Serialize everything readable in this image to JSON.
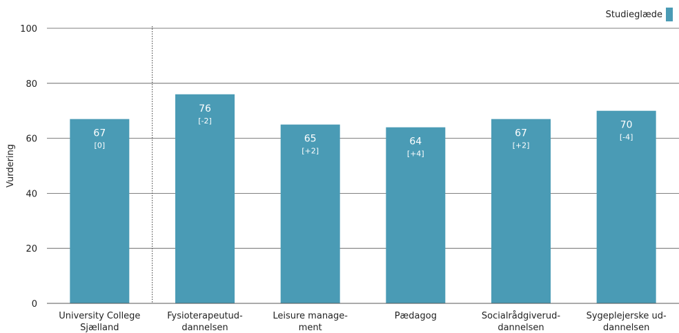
{
  "chart_data": {
    "type": "bar",
    "ylabel": "Vurdering",
    "xlabel": "",
    "ylim": [
      0,
      100
    ],
    "yticks": [
      0,
      20,
      40,
      60,
      80,
      100
    ],
    "grid": true,
    "legend_position": "top-right",
    "bar_color": "#4a9bb5",
    "categories": [
      [
        "University College",
        "Sjælland"
      ],
      [
        "Fysioterapeutud-",
        "dannelsen"
      ],
      [
        "Leisure manage-",
        "ment"
      ],
      [
        "Pædagog"
      ],
      [
        "Socialrådgiverud-",
        "dannelsen"
      ],
      [
        "Sygeplejerske ud-",
        "dannelsen"
      ]
    ],
    "series": [
      {
        "name": "Studieglæde",
        "values": [
          67,
          76,
          65,
          64,
          67,
          70
        ],
        "value_labels": [
          "67",
          "76",
          "65",
          "64",
          "67",
          "70"
        ],
        "delta_labels": [
          "[0]",
          "[-2]",
          "[+2]",
          "[+4]",
          "[+2]",
          "[-4]"
        ]
      }
    ]
  }
}
